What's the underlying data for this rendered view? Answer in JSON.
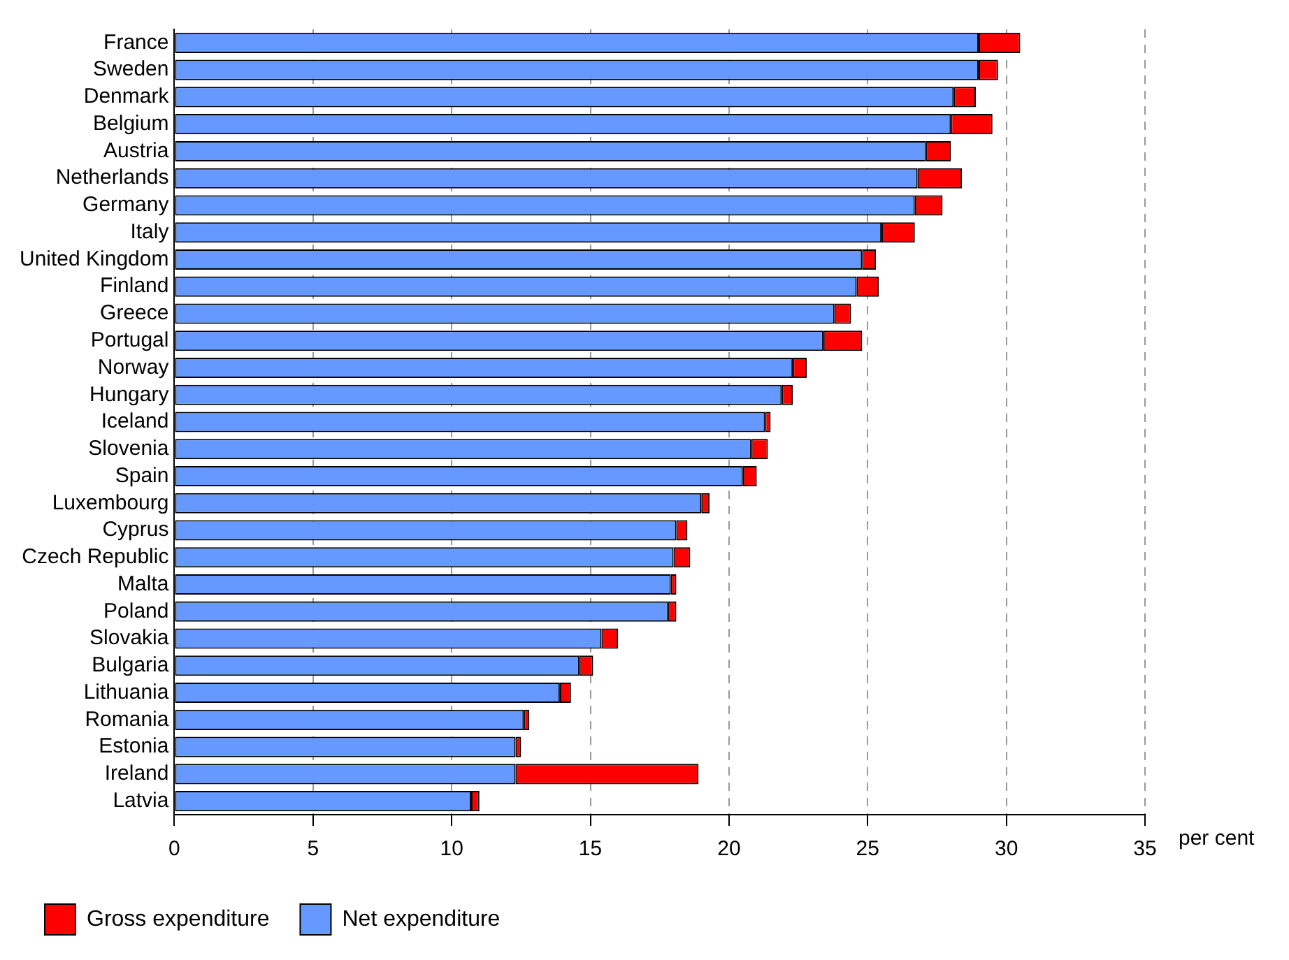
{
  "chart_data": {
    "type": "bar",
    "orientation": "horizontal",
    "stacked": true,
    "categories": [
      "France",
      "Sweden",
      "Denmark",
      "Belgium",
      "Austria",
      "Netherlands",
      "Germany",
      "Italy",
      "United Kingdom",
      "Finland",
      "Greece",
      "Portugal",
      "Norway",
      "Hungary",
      "Iceland",
      "Slovenia",
      "Spain",
      "Luxembourg",
      "Cyprus",
      "Czech Republic",
      "Malta",
      "Poland",
      "Slovakia",
      "Bulgaria",
      "Lithuania",
      "Romania",
      "Estonia",
      "Ireland",
      "Latvia"
    ],
    "series": [
      {
        "name": "Net expenditure",
        "color": "#6699ff",
        "values": [
          29.0,
          29.0,
          28.1,
          28.0,
          27.1,
          26.8,
          26.7,
          25.5,
          24.8,
          24.6,
          23.8,
          23.4,
          22.3,
          21.9,
          21.3,
          20.8,
          20.5,
          19.0,
          18.1,
          18.0,
          17.9,
          17.8,
          15.4,
          14.6,
          13.9,
          12.6,
          12.3,
          12.3,
          10.7
        ]
      },
      {
        "name": "Gross expenditure",
        "color": "#ff0000",
        "values": [
          1.5,
          0.7,
          0.8,
          1.5,
          0.9,
          1.6,
          1.0,
          1.2,
          0.5,
          0.8,
          0.6,
          1.4,
          0.5,
          0.4,
          0.2,
          0.6,
          0.5,
          0.3,
          0.4,
          0.6,
          0.2,
          0.3,
          0.6,
          0.5,
          0.4,
          0.2,
          0.2,
          6.6,
          0.3
        ]
      }
    ],
    "xlabel": "per cent",
    "xlim": [
      0,
      35
    ],
    "xticks": [
      0,
      5,
      10,
      15,
      20,
      25,
      30,
      35
    ],
    "grid": "x",
    "legend": "bottom"
  }
}
